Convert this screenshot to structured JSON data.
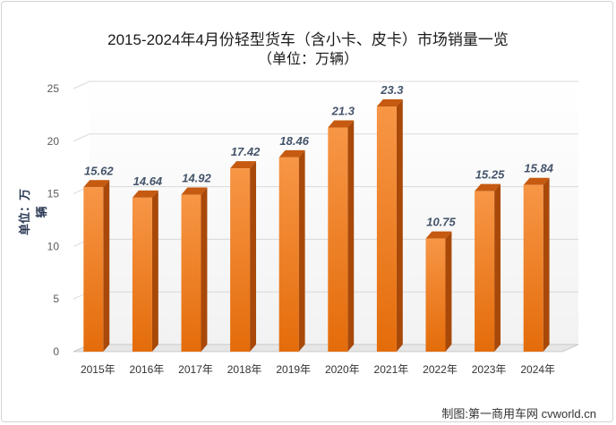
{
  "title": "2015-2024年4月份轻型货车（含小卡、皮卡）市场销量一览",
  "subtitle": "（单位：万辆）",
  "credit": "制图:第一商用车网 cvworld.cn",
  "colors": {
    "bar_light": "#f79646",
    "bar_dark": "#e46c0a",
    "bar_side": "#a8490a",
    "bar_top": "#c65a10",
    "wall": "#f2f2f2",
    "grid": "#d9d9d9",
    "value_label": "#44546a"
  },
  "chart_data": {
    "type": "bar",
    "title": "2015-2024年4月份轻型货车（含小卡、皮卡）市场销量一览",
    "subtitle": "（单位：万辆）",
    "xlabel": "",
    "ylabel": "单位：万辆",
    "categories": [
      "2015年",
      "2016年",
      "2017年",
      "2018年",
      "2019年",
      "2020年",
      "2021年",
      "2022年",
      "2023年",
      "2024年"
    ],
    "values": [
      15.62,
      14.64,
      14.92,
      17.42,
      18.46,
      21.3,
      23.3,
      10.75,
      15.25,
      15.84
    ],
    "value_labels": [
      "15.62",
      "14.64",
      "14.92",
      "17.42",
      "18.46",
      "21.3",
      "23.3",
      "10.75",
      "15.25",
      "15.84"
    ],
    "yticks": [
      "0",
      "5",
      "10",
      "15",
      "20",
      "25"
    ],
    "ylim": [
      0,
      25
    ],
    "grid": true,
    "legend": "none",
    "style": "3d-column"
  }
}
